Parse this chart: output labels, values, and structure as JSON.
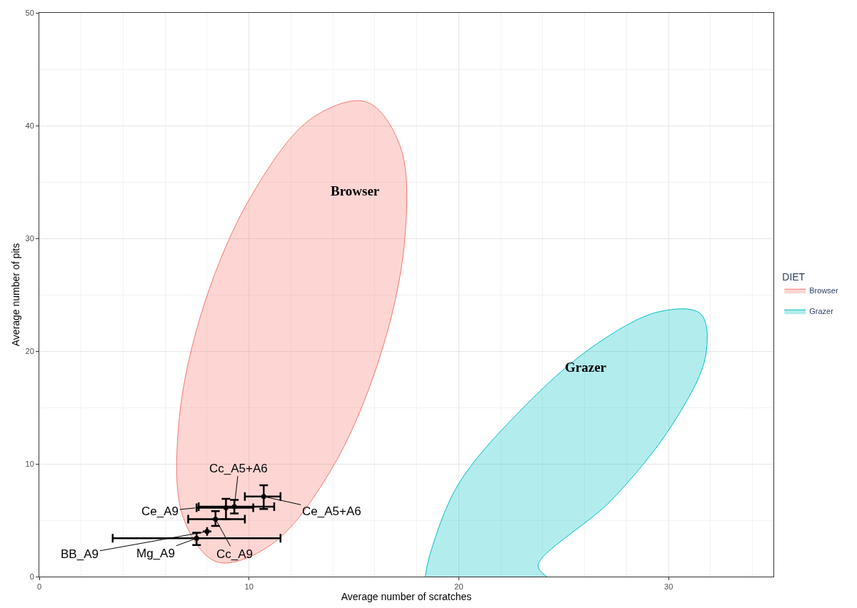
{
  "chart_data": {
    "type": "scatter",
    "xlabel": "Average number of scratches",
    "ylabel": "Average number of pits",
    "legend_title": "DIET",
    "xlim": [
      0,
      35
    ],
    "xticks": [
      0,
      10,
      20,
      30
    ],
    "ylim": [
      0,
      50
    ],
    "yticks": [
      0,
      10,
      20,
      30,
      40,
      50
    ],
    "grid": true,
    "legend": "right",
    "series": [
      {
        "name": "Browser",
        "type": "area",
        "color": "#f8766d",
        "x": [
          15.59,
          17.2,
          17.42,
          16.19,
          13.86,
          11.03,
          8.47,
          6.87,
          6.65,
          7.87,
          10.21,
          13.03,
          15.59
        ],
        "values": [
          42.1,
          38.2,
          29.8,
          19.2,
          9.3,
          2.8,
          1.3,
          5.2,
          13.6,
          24.2,
          34.1,
          40.7,
          42.1
        ]
      },
      {
        "name": "Grazer",
        "type": "area",
        "color": "#00bfc4",
        "x": [
          18.4,
          18.6,
          19.95,
          22.87,
          26.39,
          29.56,
          31.53,
          31.77,
          30.22,
          27.29,
          23.78,
          24.2
        ],
        "values": [
          0,
          1.8,
          8.1,
          14.6,
          20.4,
          23.5,
          23.3,
          19.6,
          13.6,
          6.8,
          1.0,
          0
        ]
      },
      {
        "color": "#000000",
        "marker": "circle",
        "x": [
          10.7,
          9.3,
          8.9,
          8.4,
          7.5,
          8.0
        ],
        "values": [
          7.1,
          6.2,
          6.1,
          5.1,
          3.4,
          4.0
        ],
        "errors": [
          [
            6.0,
            8.1
          ],
          [
            5.6,
            6.8
          ],
          [
            5.1,
            6.9
          ],
          [
            4.5,
            5.8
          ],
          [
            2.8,
            3.9
          ],
          null
        ],
        "xerrors": [
          [
            9.8,
            11.5
          ],
          [
            7.6,
            11.2
          ],
          [
            7.5,
            10.2
          ],
          [
            7.1,
            9.8
          ],
          [
            3.5,
            11.5
          ],
          null
        ]
      }
    ],
    "annotations": [
      {
        "text": "Ce_A5+A6",
        "x": 10.7,
        "y": 7.1
      },
      {
        "text": "Cc_A5+A6",
        "x": 9.3,
        "y": 6.2
      },
      {
        "text": "Ce_A9",
        "x": 7.5,
        "y": 6.1
      },
      {
        "text": "Cc_A9",
        "x": 8.4,
        "y": 5.1
      },
      {
        "text": "Mg_A9",
        "x": 7.5,
        "y": 3.4
      },
      {
        "text": "BB_A9",
        "x": 8.0,
        "y": 4.0
      },
      "Browser",
      "Grazer"
    ]
  }
}
